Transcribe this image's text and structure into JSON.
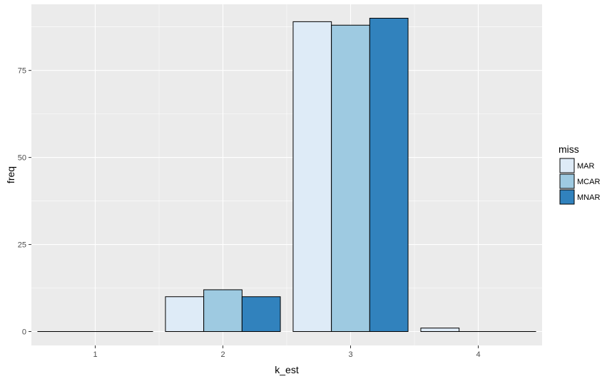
{
  "chart_data": {
    "type": "bar",
    "xlabel": "k_est",
    "ylabel": "freq",
    "categories": [
      "1",
      "2",
      "3",
      "4"
    ],
    "series": [
      {
        "name": "MAR",
        "values": [
          0,
          10,
          89,
          1
        ]
      },
      {
        "name": "MCAR",
        "values": [
          0,
          12,
          88,
          0
        ]
      },
      {
        "name": "MNAR",
        "values": [
          0,
          10,
          90,
          0
        ]
      }
    ],
    "ylim": [
      -4,
      94
    ],
    "yticks": [
      0,
      25,
      50,
      75
    ],
    "xlim": [
      0.5,
      4.5
    ],
    "grid": true,
    "legend": {
      "title": "miss",
      "position": "right"
    },
    "colors": {
      "MAR": "#deebf7",
      "MCAR": "#9ecae1",
      "MNAR": "#3182bd",
      "panel": "#ebebeb",
      "grid": "#ffffff",
      "bar_outline": "#000000",
      "axis_text": "#4d4d4d"
    }
  }
}
